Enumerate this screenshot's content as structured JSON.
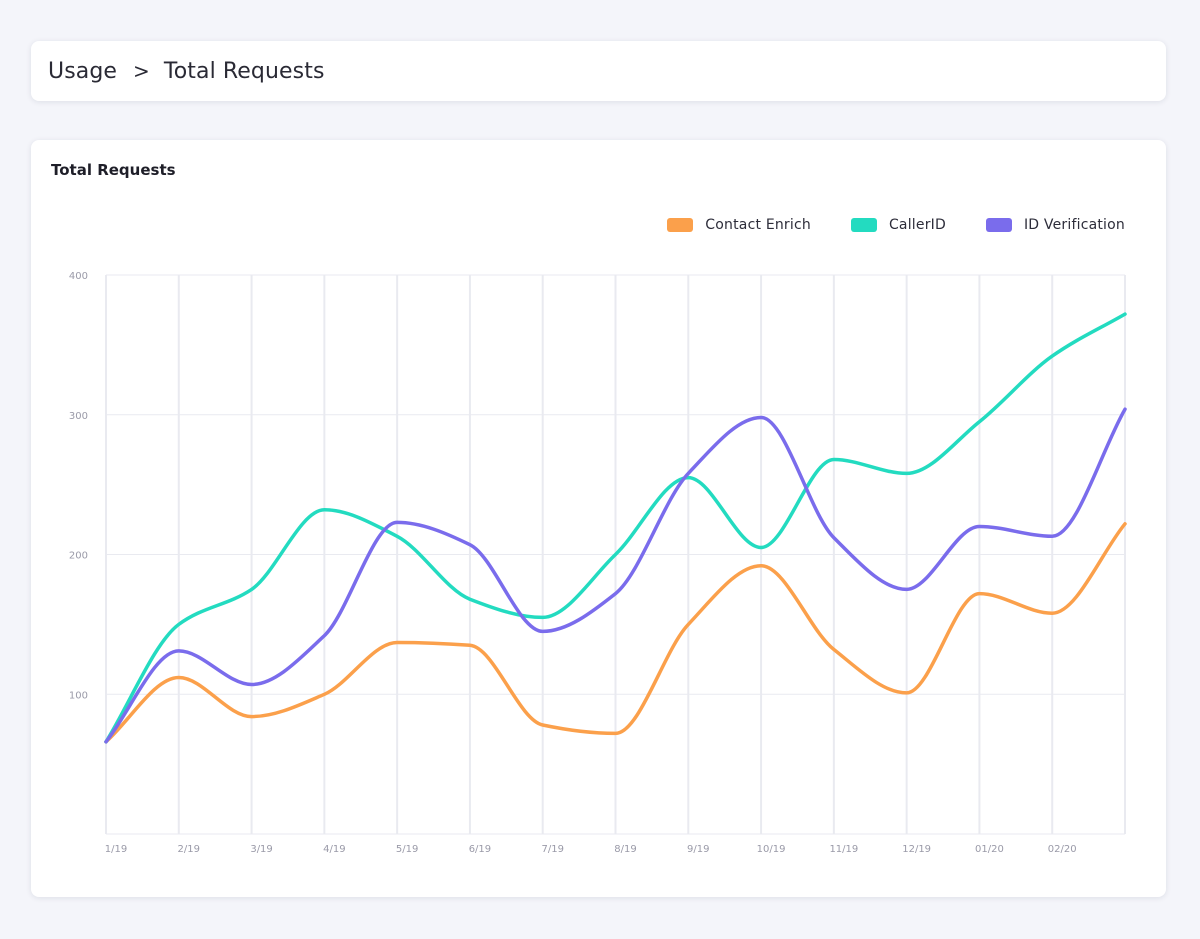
{
  "breadcrumb": {
    "parent": "Usage",
    "separator": ">",
    "current": "Total Requests"
  },
  "chart_card": {
    "title": "Total Requests"
  },
  "chart_data": {
    "type": "line",
    "title": "Total Requests",
    "xlabel": "",
    "ylabel": "",
    "categories": [
      "1/19",
      "2/19",
      "3/19",
      "4/19",
      "5/19",
      "6/19",
      "7/19",
      "8/19",
      "9/19",
      "10/19",
      "11/19",
      "12/19",
      "01/20",
      "02/20",
      ""
    ],
    "y_ticks": [
      100,
      200,
      300,
      400
    ],
    "ylim": [
      0,
      400
    ],
    "grid": true,
    "legend_position": "top-right",
    "series": [
      {
        "name": "Contact Enrich",
        "color": "#fba04b",
        "values": [
          66,
          112,
          84,
          100,
          137,
          135,
          78,
          72,
          150,
          192,
          132,
          101,
          172,
          158,
          222
        ]
      },
      {
        "name": "CallerID",
        "color": "#23dbc0",
        "values": [
          66,
          150,
          175,
          232,
          213,
          168,
          155,
          200,
          255,
          205,
          268,
          258,
          295,
          342,
          372
        ]
      },
      {
        "name": "ID Verification",
        "color": "#7a6cec",
        "values": [
          66,
          131,
          107,
          142,
          223,
          207,
          145,
          172,
          258,
          298,
          212,
          175,
          220,
          213,
          304
        ]
      }
    ]
  }
}
